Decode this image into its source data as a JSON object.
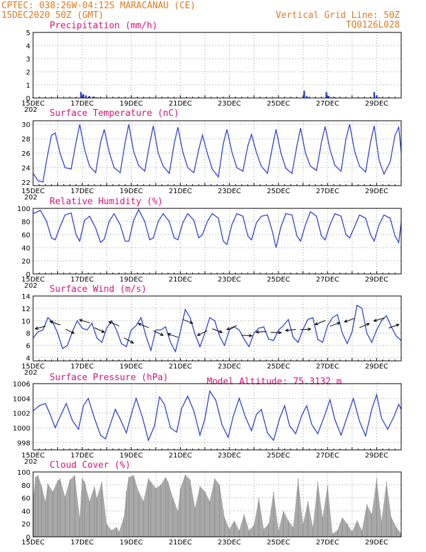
{
  "header": {
    "line1": "CPTEC:   038:26W-04:12S  MARACANAU (CE)",
    "line2": "15DEC2020 50Z (GMT)",
    "grid_note": "Vertical Grid Line: 50Z",
    "code": "TQ0126L028",
    "model_altitude": "Model Altitude: 75.3132 m"
  },
  "colors": {
    "header": "#e07a1f",
    "title": "#e0107a",
    "line": "#2f3fd8",
    "bar": "#a9a9a9",
    "arrow": "#000000"
  },
  "x_labels": [
    "15DEC",
    "17DEC",
    "19DEC",
    "21DEC",
    "23DEC",
    "25DEC",
    "27DEC",
    "29DEC"
  ],
  "x_label_stub": "202",
  "chart_data": [
    {
      "type": "bar",
      "title": "Precipitation (mm/h)",
      "ylim": [
        0,
        5
      ],
      "yticks": [
        "0",
        "1",
        "2",
        "3",
        "4",
        "5"
      ],
      "x_unit": "day offset from 15DEC",
      "x": [
        0.0,
        1.95,
        2.05,
        2.15,
        2.3,
        2.45,
        2.6,
        11.05,
        11.15,
        11.25,
        11.95,
        12.05,
        12.15,
        12.3,
        13.9,
        14.0,
        14.1
      ],
      "values": [
        0.05,
        0.45,
        0.3,
        0.2,
        0.15,
        0.1,
        0.05,
        0.55,
        0.15,
        0.05,
        0.45,
        0.15,
        0.05,
        0.05,
        0.45,
        0.2,
        0.05
      ]
    },
    {
      "type": "line",
      "title": "Surface Temperature (nC)",
      "ylim": [
        21.5,
        30.5
      ],
      "yticks": [
        "22",
        "24",
        "26",
        "28",
        "30"
      ],
      "x_unit": "day offset from 15DEC",
      "x": [
        0,
        0.2,
        0.4,
        0.55,
        0.75,
        0.9,
        1.1,
        1.3,
        1.55,
        1.75,
        1.9,
        2.1,
        2.3,
        2.55,
        2.75,
        2.9,
        3.1,
        3.3,
        3.55,
        3.75,
        3.9,
        4.1,
        4.3,
        4.55,
        4.75,
        4.9,
        5.1,
        5.3,
        5.55,
        5.75,
        5.9,
        6.1,
        6.3,
        6.55,
        6.75,
        6.9,
        7.1,
        7.3,
        7.55,
        7.75,
        7.9,
        8.1,
        8.3,
        8.55,
        8.75,
        8.9,
        9.1,
        9.3,
        9.55,
        9.75,
        9.9,
        10.1,
        10.3,
        10.55,
        10.75,
        10.9,
        11.1,
        11.3,
        11.55,
        11.75,
        11.9,
        12.1,
        12.3,
        12.55,
        12.75,
        12.9,
        13.1,
        13.3,
        13.55,
        13.75,
        13.9,
        14.1,
        14.3,
        14.55,
        14.75,
        14.9,
        15.0
      ],
      "values": [
        23.2,
        22.2,
        22.0,
        25.0,
        28.5,
        28.8,
        26.0,
        24.0,
        23.8,
        27.5,
        30.0,
        26.5,
        24.2,
        23.3,
        27.5,
        29.3,
        26.2,
        24.0,
        23.3,
        27.5,
        30.0,
        26.2,
        24.3,
        23.5,
        27.3,
        29.8,
        26.0,
        24.2,
        23.2,
        27.3,
        29.6,
        26.2,
        24.0,
        23.3,
        26.5,
        28.5,
        26.0,
        23.8,
        22.7,
        27.3,
        29.3,
        26.2,
        24.0,
        23.5,
        27.0,
        28.6,
        26.1,
        24.2,
        23.2,
        26.8,
        29.3,
        26.0,
        23.9,
        23.2,
        27.0,
        29.5,
        26.0,
        24.2,
        23.6,
        27.5,
        29.7,
        26.5,
        24.3,
        23.5,
        28.0,
        30.0,
        26.3,
        24.2,
        23.4,
        27.5,
        29.8,
        25.0,
        23.1,
        24.8,
        28.5,
        29.6,
        26.2
      ]
    },
    {
      "type": "line",
      "title": "Relative Humidity (%)",
      "ylim": [
        0,
        100
      ],
      "yticks": [
        "0",
        "20",
        "40",
        "60",
        "80",
        "100"
      ],
      "x_unit": "day offset from 15DEC",
      "x": [
        0,
        0.3,
        0.55,
        0.75,
        0.9,
        1.1,
        1.3,
        1.55,
        1.75,
        1.9,
        2.1,
        2.3,
        2.55,
        2.75,
        2.9,
        3.1,
        3.3,
        3.55,
        3.75,
        3.9,
        4.1,
        4.3,
        4.55,
        4.75,
        4.9,
        5.1,
        5.3,
        5.55,
        5.75,
        5.9,
        6.1,
        6.3,
        6.55,
        6.75,
        6.9,
        7.1,
        7.3,
        7.55,
        7.75,
        7.9,
        8.1,
        8.3,
        8.55,
        8.75,
        8.9,
        9.1,
        9.3,
        9.55,
        9.75,
        9.9,
        10.1,
        10.3,
        10.55,
        10.75,
        10.9,
        11.1,
        11.3,
        11.55,
        11.75,
        11.9,
        12.1,
        12.3,
        12.55,
        12.75,
        12.9,
        13.1,
        13.3,
        13.55,
        13.75,
        13.9,
        14.1,
        14.3,
        14.55,
        14.75,
        14.9,
        15.0
      ],
      "values": [
        92,
        97,
        80,
        55,
        52,
        72,
        90,
        93,
        60,
        50,
        82,
        88,
        70,
        48,
        53,
        80,
        92,
        75,
        50,
        50,
        82,
        98,
        80,
        52,
        55,
        80,
        92,
        80,
        55,
        52,
        78,
        92,
        82,
        55,
        60,
        80,
        92,
        85,
        50,
        45,
        75,
        92,
        88,
        58,
        52,
        78,
        88,
        90,
        65,
        40,
        72,
        92,
        90,
        58,
        50,
        75,
        95,
        88,
        58,
        52,
        75,
        92,
        88,
        60,
        55,
        72,
        90,
        85,
        60,
        50,
        75,
        90,
        85,
        58,
        48,
        78
      ]
    },
    {
      "type": "line",
      "title": "Surface Wind (m/s)",
      "ylim": [
        3.5,
        14
      ],
      "yticks": [
        "4",
        "6",
        "8",
        "10",
        "12",
        "14"
      ],
      "x_unit": "day offset from 15DEC",
      "x": [
        0,
        0.2,
        0.4,
        0.6,
        0.8,
        1.0,
        1.2,
        1.4,
        1.6,
        1.8,
        2.0,
        2.2,
        2.4,
        2.6,
        2.8,
        3.0,
        3.2,
        3.4,
        3.6,
        3.8,
        4.0,
        4.2,
        4.4,
        4.6,
        4.8,
        5.0,
        5.2,
        5.4,
        5.6,
        5.8,
        6.0,
        6.2,
        6.4,
        6.6,
        6.8,
        7.0,
        7.2,
        7.4,
        7.6,
        7.8,
        8.0,
        8.2,
        8.4,
        8.6,
        8.8,
        9.0,
        9.2,
        9.4,
        9.6,
        9.8,
        10.0,
        10.2,
        10.4,
        10.6,
        10.8,
        11.0,
        11.2,
        11.4,
        11.6,
        11.8,
        12.0,
        12.2,
        12.4,
        12.6,
        12.8,
        13.0,
        13.2,
        13.4,
        13.6,
        13.8,
        14.0,
        14.2,
        14.4,
        14.6,
        14.8,
        15.0
      ],
      "values": [
        7.2,
        8.2,
        8.5,
        10.5,
        9.8,
        8.0,
        5.5,
        6.0,
        8.2,
        10.0,
        8.8,
        8.5,
        9.6,
        7.2,
        6.5,
        8.8,
        10.0,
        8.5,
        6.3,
        5.8,
        8.5,
        9.2,
        10.5,
        7.5,
        5.2,
        8.5,
        8.5,
        9.0,
        6.5,
        5.0,
        8.2,
        11.8,
        10.5,
        7.8,
        5.8,
        8.0,
        10.5,
        10.0,
        7.5,
        6.0,
        8.5,
        9.0,
        8.5,
        7.0,
        5.8,
        8.0,
        8.8,
        9.0,
        7.0,
        6.8,
        8.5,
        9.2,
        10.2,
        7.3,
        6.5,
        8.6,
        10.2,
        10.5,
        7.0,
        6.5,
        9.2,
        10.5,
        11.0,
        8.0,
        6.3,
        8.2,
        12.5,
        12.0,
        8.0,
        6.5,
        8.5,
        10.0,
        10.8,
        9.0,
        7.5,
        6.8
      ],
      "arrow_speeds": [
        8.9,
        9.6,
        8.3,
        9.9,
        8.5,
        9.5,
        6.8,
        9.2,
        8.0,
        7.6,
        9.9,
        8.0,
        8.4,
        8.9,
        7.6,
        8.2,
        8.1,
        8.5,
        8.6,
        9.7,
        9.4,
        10.1,
        9.2,
        10.2,
        9.1
      ],
      "arrow_dx": [
        -1,
        -1,
        0.8,
        -1,
        0.95,
        -1,
        0.9,
        -1,
        0.95,
        -1,
        0.95,
        -0.95,
        0.95,
        -0.95,
        1,
        -1,
        1,
        -1,
        1,
        -1,
        0.95,
        -1,
        0.95,
        -1,
        1
      ],
      "arrow_dy": [
        0.25,
        -0.35,
        0.4,
        -0.3,
        0.45,
        -0.4,
        0.5,
        -0.4,
        0.45,
        -0.35,
        0.35,
        0.45,
        0.35,
        0.4,
        0.05,
        0.05,
        0.05,
        0.1,
        -0.05,
        0.4,
        -0.35,
        0.35,
        -0.4,
        0.3,
        -0.35
      ]
    },
    {
      "type": "line",
      "title": "Surface Pressure (hPa)",
      "ylim": [
        997,
        1006
      ],
      "yticks": [
        "998",
        "1000",
        "1002",
        "1004",
        "1006"
      ],
      "x_unit": "day offset from 15DEC",
      "x": [
        0,
        0.25,
        0.5,
        0.7,
        0.9,
        1.1,
        1.35,
        1.6,
        1.85,
        2.05,
        2.25,
        2.5,
        2.75,
        2.95,
        3.15,
        3.35,
        3.55,
        3.8,
        4.0,
        4.2,
        4.45,
        4.7,
        4.95,
        5.15,
        5.35,
        5.6,
        5.85,
        6.05,
        6.3,
        6.55,
        6.8,
        7.0,
        7.2,
        7.45,
        7.7,
        7.95,
        8.15,
        8.4,
        8.65,
        8.9,
        9.1,
        9.3,
        9.55,
        9.8,
        10.05,
        10.25,
        10.45,
        10.7,
        10.95,
        11.15,
        11.35,
        11.6,
        11.85,
        12.1,
        12.3,
        12.55,
        12.8,
        13.05,
        13.3,
        13.55,
        13.8,
        14.0,
        14.2,
        14.45,
        14.7,
        14.9,
        15.0
      ],
      "values": [
        1002.3,
        1003.0,
        1003.3,
        1001.8,
        1000.0,
        1001.5,
        1003.3,
        1001.0,
        999.8,
        1003.0,
        1004.0,
        1001.3,
        999.0,
        998.5,
        1000.5,
        1002.5,
        1001.2,
        999.3,
        1001.8,
        1004.0,
        1001.5,
        998.3,
        1000.3,
        1004.2,
        1003.2,
        1000.0,
        999.4,
        1002.6,
        1004.3,
        1002.3,
        999.0,
        1001.2,
        1005.0,
        1003.7,
        1000.4,
        998.7,
        1001.5,
        1004.0,
        1001.5,
        999.6,
        1001.8,
        1002.5,
        999.3,
        998.3,
        1001.3,
        1003.0,
        1000.3,
        999.2,
        1001.7,
        1003.0,
        1000.5,
        999.2,
        1001.4,
        1003.8,
        1001.1,
        999.0,
        1001.5,
        1004.0,
        1000.9,
        998.9,
        1002.5,
        1004.5,
        1001.3,
        999.8,
        1001.5,
        1003.2,
        1002.5
      ]
    },
    {
      "type": "area",
      "title": "Cloud Cover (%)",
      "ylim": [
        0,
        100
      ],
      "yticks": [
        "0",
        "20",
        "40",
        "60",
        "80",
        "100"
      ],
      "x_unit": "day offset from 15DEC",
      "x": [
        0,
        0.1,
        0.2,
        0.35,
        0.5,
        0.6,
        0.8,
        1.0,
        1.1,
        1.3,
        1.5,
        1.7,
        1.9,
        2.0,
        2.1,
        2.3,
        2.5,
        2.6,
        2.8,
        3.0,
        3.2,
        3.4,
        3.5,
        3.7,
        3.8,
        3.9,
        4.1,
        4.3,
        4.5,
        4.7,
        4.8,
        5.0,
        5.2,
        5.4,
        5.5,
        5.7,
        5.9,
        6.0,
        6.2,
        6.4,
        6.6,
        6.8,
        7.0,
        7.2,
        7.4,
        7.6,
        7.8,
        8.0,
        8.2,
        8.4,
        8.6,
        8.8,
        9.0,
        9.2,
        9.4,
        9.6,
        9.8,
        10.0,
        10.2,
        10.4,
        10.6,
        10.8,
        11.0,
        11.2,
        11.4,
        11.6,
        11.8,
        12.0,
        12.2,
        12.4,
        12.6,
        12.8,
        13.0,
        13.2,
        13.4,
        13.6,
        13.8,
        14.0,
        14.2,
        14.4,
        14.6,
        14.8,
        15.0
      ],
      "values": [
        60,
        92,
        95,
        78,
        55,
        82,
        70,
        86,
        90,
        62,
        88,
        95,
        30,
        90,
        85,
        55,
        78,
        60,
        85,
        20,
        10,
        15,
        8,
        30,
        70,
        92,
        95,
        70,
        55,
        90,
        85,
        75,
        80,
        92,
        85,
        60,
        40,
        75,
        96,
        88,
        45,
        78,
        70,
        55,
        90,
        80,
        30,
        12,
        25,
        10,
        35,
        10,
        18,
        60,
        12,
        20,
        70,
        10,
        40,
        25,
        15,
        90,
        20,
        55,
        15,
        85,
        30,
        80,
        5,
        10,
        30,
        20,
        8,
        25,
        10,
        50,
        35,
        90,
        25,
        85,
        30,
        15,
        5
      ]
    }
  ]
}
